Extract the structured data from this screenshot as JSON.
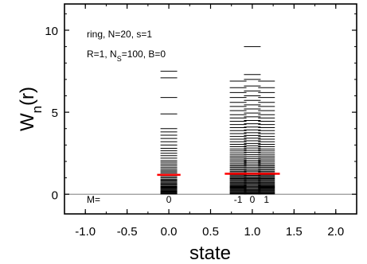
{
  "chart_data": {
    "type": "scatter",
    "xlabel": "state",
    "ylabel": {
      "base": "W",
      "sub": "n",
      "tail": "(r)"
    },
    "xlim": [
      -1.25,
      2.25
    ],
    "ylim": [
      -1.2,
      11.6
    ],
    "x_ticks": [
      -1.0,
      -0.5,
      0.0,
      0.5,
      1.0,
      1.5,
      2.0
    ],
    "x_tick_labels": [
      "-1.0",
      "-0.5",
      "0.0",
      "0.5",
      "1.0",
      "1.5",
      "2.0"
    ],
    "y_ticks": [
      0,
      5,
      10
    ],
    "y_tick_labels": [
      "0",
      "5",
      "10"
    ],
    "zero_line": 0,
    "annotations": {
      "line1": "ring, N=20, s=1",
      "line2_pre": "R=1, N",
      "line2_sub": "S",
      "line2_post": "=100, B=0",
      "m_prefix": "M="
    },
    "columns": [
      {
        "m_label": "0",
        "x": 0.0,
        "halfwidth": 0.1,
        "levels": [
          0.02,
          0.05,
          0.08,
          0.12,
          0.16,
          0.2,
          0.25,
          0.3,
          0.35,
          0.4,
          0.45,
          0.5,
          0.56,
          0.62,
          0.68,
          0.74,
          0.8,
          0.86,
          0.92,
          1.0,
          1.08,
          1.15,
          1.22,
          1.3,
          1.38,
          1.46,
          1.55,
          1.65,
          1.75,
          1.85,
          1.95,
          2.05,
          2.2,
          2.35,
          2.5,
          2.65,
          2.8,
          3.0,
          3.2,
          3.4,
          3.6,
          3.8,
          4.0,
          4.9,
          5.9,
          7.1,
          7.5
        ]
      },
      {
        "m_label": "-1",
        "x": 0.83,
        "halfwidth": 0.1,
        "levels": [
          0.02,
          0.06,
          0.1,
          0.15,
          0.2,
          0.25,
          0.3,
          0.35,
          0.4,
          0.45,
          0.5,
          0.55,
          0.6,
          0.66,
          0.72,
          0.78,
          0.84,
          0.9,
          0.96,
          1.02,
          1.08,
          1.14,
          1.2,
          1.26,
          1.32,
          1.4,
          1.48,
          1.56,
          1.64,
          1.72,
          1.8,
          1.9,
          2.0,
          2.1,
          2.2,
          2.3,
          2.4,
          2.52,
          2.64,
          2.76,
          2.9,
          3.04,
          3.2,
          3.36,
          3.52,
          3.7,
          3.88,
          4.06,
          4.25,
          4.45,
          4.65,
          4.85,
          5.1,
          5.35,
          5.6,
          5.9,
          6.2,
          6.5,
          6.9
        ]
      },
      {
        "m_label": "0",
        "x": 1.0,
        "halfwidth": 0.1,
        "levels": [
          0.02,
          0.06,
          0.1,
          0.15,
          0.2,
          0.25,
          0.3,
          0.36,
          0.42,
          0.48,
          0.54,
          0.6,
          0.66,
          0.72,
          0.78,
          0.84,
          0.9,
          0.96,
          1.02,
          1.08,
          1.15,
          1.22,
          1.3,
          1.38,
          1.46,
          1.55,
          1.64,
          1.74,
          1.84,
          1.95,
          2.06,
          2.18,
          2.3,
          2.42,
          2.55,
          2.68,
          2.82,
          2.96,
          3.1,
          3.26,
          3.42,
          3.58,
          3.75,
          3.92,
          4.1,
          4.3,
          4.5,
          4.72,
          4.95,
          5.2,
          5.45,
          5.72,
          6.0,
          6.3,
          6.6,
          7.0,
          7.3,
          9.0
        ]
      },
      {
        "m_label": "1",
        "x": 1.17,
        "halfwidth": 0.1,
        "levels": [
          0.02,
          0.06,
          0.1,
          0.15,
          0.2,
          0.25,
          0.3,
          0.35,
          0.4,
          0.45,
          0.5,
          0.55,
          0.6,
          0.66,
          0.72,
          0.78,
          0.84,
          0.9,
          0.96,
          1.02,
          1.08,
          1.14,
          1.2,
          1.26,
          1.32,
          1.4,
          1.48,
          1.56,
          1.64,
          1.72,
          1.8,
          1.9,
          2.0,
          2.1,
          2.2,
          2.3,
          2.4,
          2.52,
          2.64,
          2.76,
          2.9,
          3.04,
          3.2,
          3.36,
          3.52,
          3.7,
          3.88,
          4.06,
          4.25,
          4.45,
          4.65,
          4.85,
          5.1,
          5.35,
          5.6,
          5.9,
          6.2,
          6.5,
          6.9
        ]
      }
    ],
    "means": [
      {
        "x1": -0.14,
        "x2": 0.14,
        "y": 1.18,
        "color": "#ff0000"
      },
      {
        "x1": 0.67,
        "x2": 1.33,
        "y": 1.25,
        "color": "#ff0000"
      }
    ]
  }
}
